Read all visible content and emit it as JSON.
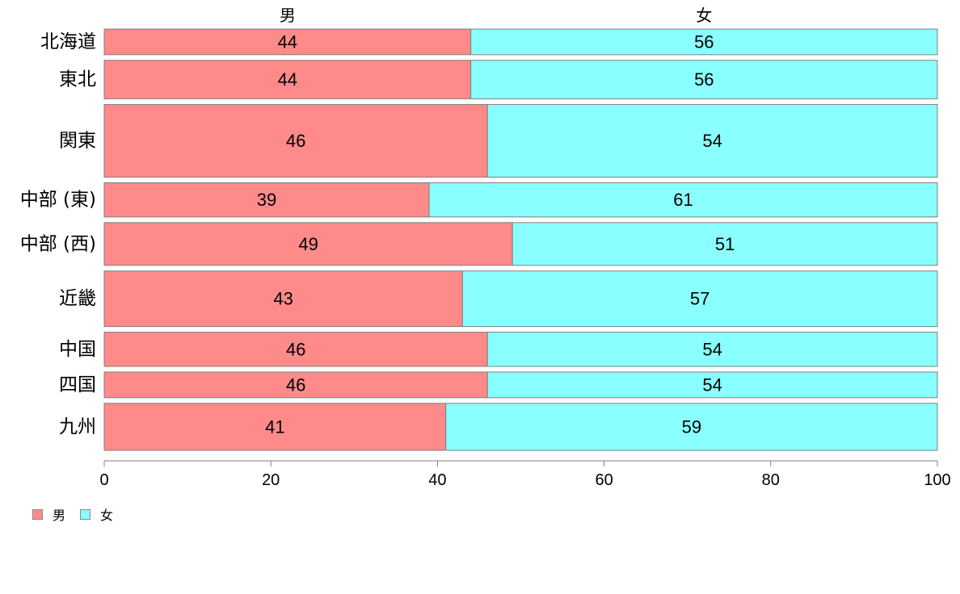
{
  "chart_data": {
    "type": "bar",
    "orientation": "horizontal",
    "stacked": true,
    "categories": [
      "北海道",
      "東北",
      "関東",
      "中部 (東)",
      "中部 (西)",
      "近畿",
      "中国",
      "四国",
      "九州"
    ],
    "series": [
      {
        "name": "男",
        "color": "#FF8A8A",
        "values": [
          44,
          44,
          46,
          39,
          49,
          43,
          46,
          46,
          41
        ]
      },
      {
        "name": "女",
        "color": "#8AFFFF",
        "values": [
          56,
          56,
          54,
          61,
          51,
          57,
          54,
          54,
          59
        ]
      }
    ],
    "data_labels": {
      "男": [
        "44",
        "44",
        "46",
        "39",
        "49",
        "43",
        "46",
        "46",
        "41"
      ],
      "女": [
        "56",
        "56",
        "54",
        "61",
        "51",
        "57",
        "54",
        "54",
        "59"
      ]
    },
    "bar_weights": [
      6,
      9,
      17,
      8,
      10,
      13,
      8,
      6,
      11
    ],
    "xlim": [
      0,
      100
    ],
    "xticks": [
      0,
      20,
      40,
      60,
      80,
      100
    ],
    "top_labels": [
      "男",
      "女"
    ],
    "legend": {
      "placement": "bottom-left",
      "entries": [
        "男",
        "女"
      ]
    },
    "grid": false
  }
}
